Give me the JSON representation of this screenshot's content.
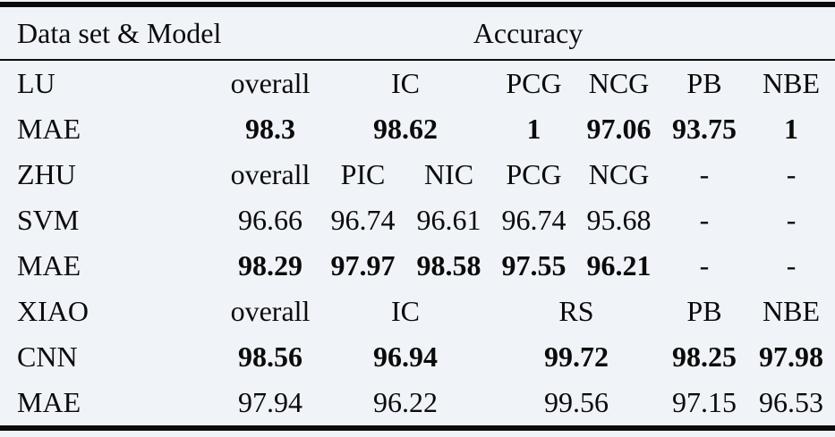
{
  "page": {
    "background_color": "#f0f3f8",
    "rule_color": "#0b0b0b",
    "text_color": "#0b0b0b"
  },
  "table": {
    "header": {
      "left": "Data set & Model",
      "right": "Accuracy"
    },
    "rows": [
      {
        "label": "LU",
        "cells": [
          {
            "text": "overall",
            "span": 1,
            "bold": false
          },
          {
            "text": "IC",
            "span": 2,
            "bold": false
          },
          {
            "text": "PCG",
            "span": 1,
            "bold": false
          },
          {
            "text": "NCG",
            "span": 1,
            "bold": false
          },
          {
            "text": "PB",
            "span": 1,
            "bold": false
          },
          {
            "text": "NBE",
            "span": 1,
            "bold": false
          }
        ]
      },
      {
        "label": "MAE",
        "cells": [
          {
            "text": "98.3",
            "span": 1,
            "bold": true
          },
          {
            "text": "98.62",
            "span": 2,
            "bold": true
          },
          {
            "text": "1",
            "span": 1,
            "bold": true
          },
          {
            "text": "97.06",
            "span": 1,
            "bold": true
          },
          {
            "text": "93.75",
            "span": 1,
            "bold": true
          },
          {
            "text": "1",
            "span": 1,
            "bold": true
          }
        ]
      },
      {
        "label": "ZHU",
        "cells": [
          {
            "text": "overall",
            "span": 1,
            "bold": false
          },
          {
            "text": "PIC",
            "span": 1,
            "bold": false
          },
          {
            "text": "NIC",
            "span": 1,
            "bold": false
          },
          {
            "text": "PCG",
            "span": 1,
            "bold": false
          },
          {
            "text": "NCG",
            "span": 1,
            "bold": false
          },
          {
            "text": "-",
            "span": 1,
            "bold": false
          },
          {
            "text": "-",
            "span": 1,
            "bold": false
          }
        ]
      },
      {
        "label": "SVM",
        "cells": [
          {
            "text": "96.66",
            "span": 1,
            "bold": false
          },
          {
            "text": "96.74",
            "span": 1,
            "bold": false
          },
          {
            "text": "96.61",
            "span": 1,
            "bold": false
          },
          {
            "text": "96.74",
            "span": 1,
            "bold": false
          },
          {
            "text": "95.68",
            "span": 1,
            "bold": false
          },
          {
            "text": "-",
            "span": 1,
            "bold": false
          },
          {
            "text": "-",
            "span": 1,
            "bold": false
          }
        ]
      },
      {
        "label": "MAE",
        "cells": [
          {
            "text": "98.29",
            "span": 1,
            "bold": true
          },
          {
            "text": "97.97",
            "span": 1,
            "bold": true
          },
          {
            "text": "98.58",
            "span": 1,
            "bold": true
          },
          {
            "text": "97.55",
            "span": 1,
            "bold": true
          },
          {
            "text": "96.21",
            "span": 1,
            "bold": true
          },
          {
            "text": "-",
            "span": 1,
            "bold": false
          },
          {
            "text": "-",
            "span": 1,
            "bold": false
          }
        ]
      },
      {
        "label": "XIAO",
        "cells": [
          {
            "text": "overall",
            "span": 1,
            "bold": false
          },
          {
            "text": "IC",
            "span": 2,
            "bold": false
          },
          {
            "text": "RS",
            "span": 2,
            "bold": false
          },
          {
            "text": "PB",
            "span": 1,
            "bold": false
          },
          {
            "text": "NBE",
            "span": 1,
            "bold": false
          }
        ]
      },
      {
        "label": "CNN",
        "cells": [
          {
            "text": "98.56",
            "span": 1,
            "bold": true
          },
          {
            "text": "96.94",
            "span": 2,
            "bold": true
          },
          {
            "text": "99.72",
            "span": 2,
            "bold": true
          },
          {
            "text": "98.25",
            "span": 1,
            "bold": true
          },
          {
            "text": "97.98",
            "span": 1,
            "bold": true
          }
        ]
      },
      {
        "label": "MAE",
        "cells": [
          {
            "text": "97.94",
            "span": 1,
            "bold": false
          },
          {
            "text": "96.22",
            "span": 2,
            "bold": false
          },
          {
            "text": "99.56",
            "span": 2,
            "bold": false
          },
          {
            "text": "97.15",
            "span": 1,
            "bold": false
          },
          {
            "text": "96.53",
            "span": 1,
            "bold": false
          }
        ]
      }
    ]
  }
}
